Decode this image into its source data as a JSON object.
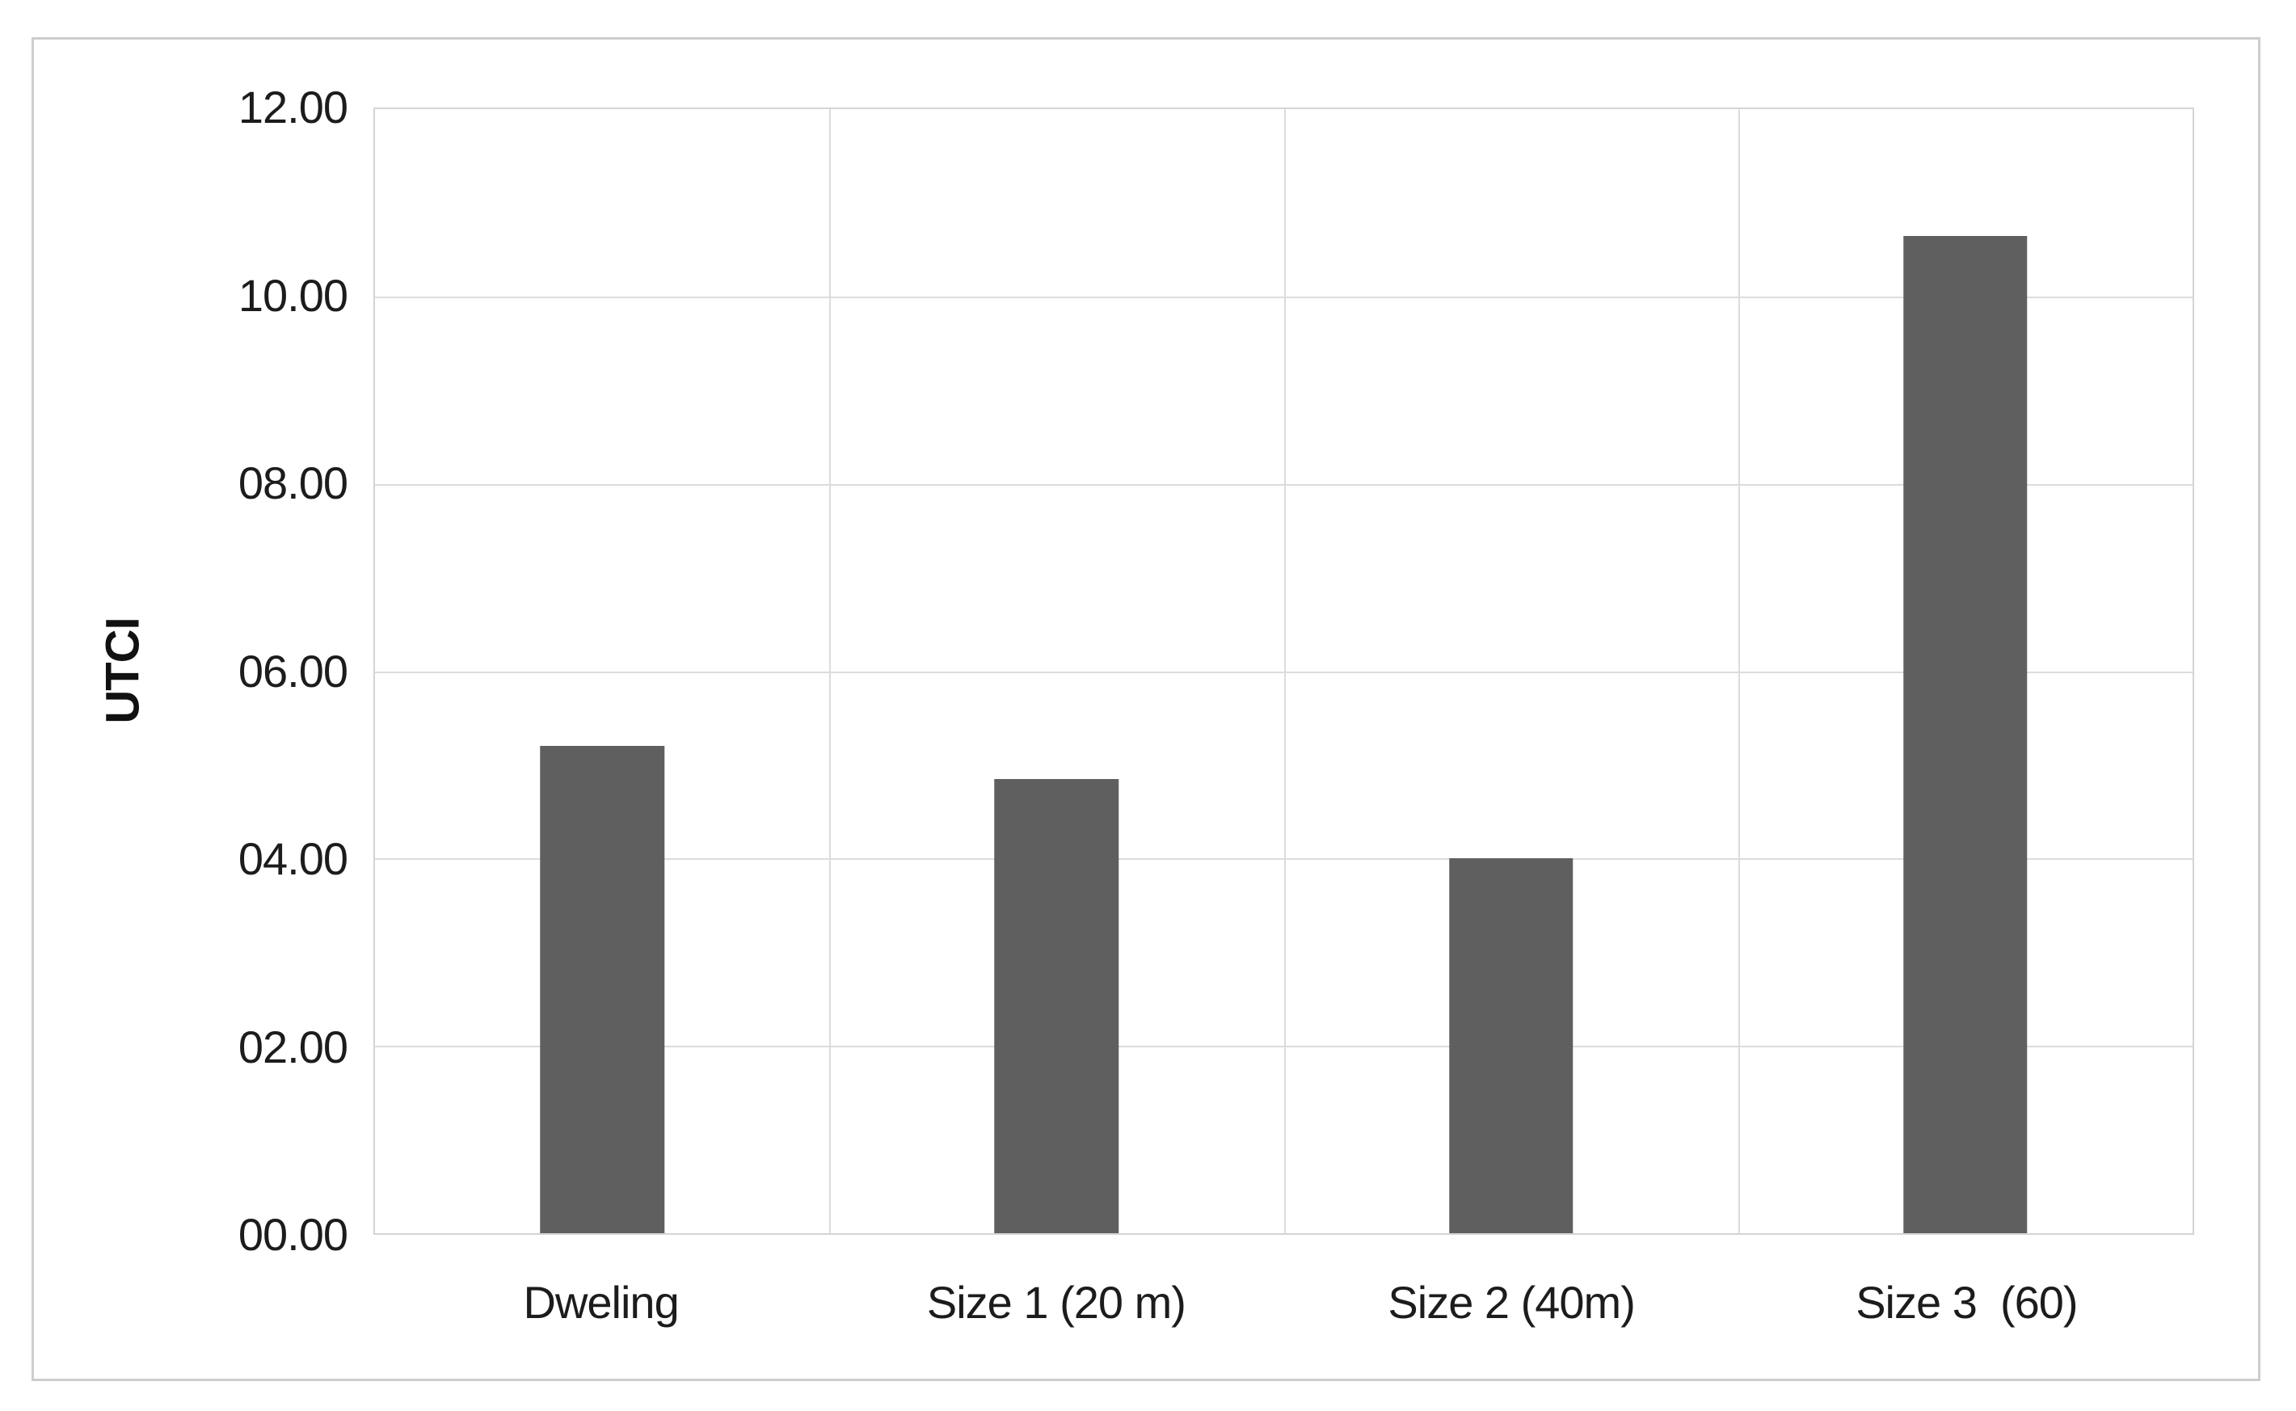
{
  "chart_data": {
    "type": "bar",
    "title": "",
    "categories": [
      "Dweling",
      "Size 1 (20 m)",
      "Size 2 (40m)",
      "Size 3  (60)"
    ],
    "values": [
      5.2,
      4.85,
      4.0,
      10.65
    ],
    "series": [
      {
        "name": "UTCI",
        "values": [
          5.2,
          4.85,
          4.0,
          10.65
        ]
      }
    ],
    "xlabel": "",
    "ylabel": "UTCI",
    "ylim": [
      0,
      12
    ],
    "ytick_interval": 2,
    "ytick_labels": [
      "00.00",
      "02.00",
      "04.00",
      "06.00",
      "08.00",
      "10.00",
      "12.00"
    ],
    "grid": true,
    "vertical_gridlines": true,
    "legend_position": "none",
    "colors": {
      "bar": "#5f5f5f",
      "gridline": "#dcdcdc",
      "plot_border": "#d4d4d4",
      "frame_border": "#cdcdcd",
      "text": "#1c1c1c",
      "background": "#ffffff"
    }
  }
}
